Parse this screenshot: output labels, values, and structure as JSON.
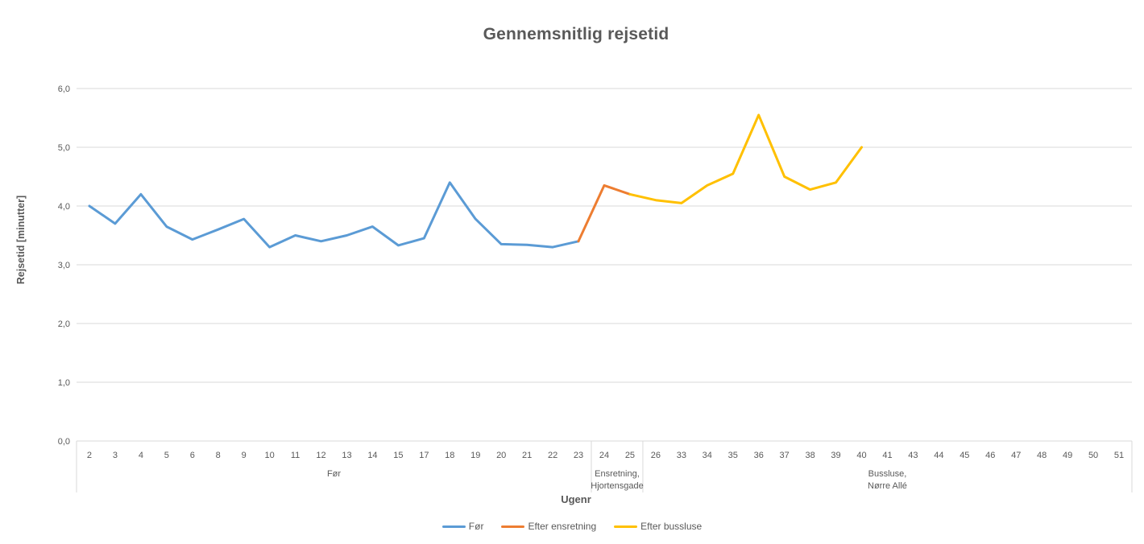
{
  "chart_data": {
    "type": "line",
    "title": "Gennemsnitlig rejsetid",
    "xlabel": "Ugenr",
    "ylabel": "Rejsetid [minutter]",
    "ylim": [
      0,
      6
    ],
    "grid": true,
    "legend_position": "bottom",
    "colors": {
      "axis_text": "#595959",
      "gridline": "#D9D9D9",
      "title_text": "#595959"
    },
    "yticks": [
      {
        "value": 0,
        "label": "0,0"
      },
      {
        "value": 1,
        "label": "1,0"
      },
      {
        "value": 2,
        "label": "2,0"
      },
      {
        "value": 3,
        "label": "3,0"
      },
      {
        "value": 4,
        "label": "4,0"
      },
      {
        "value": 5,
        "label": "5,0"
      },
      {
        "value": 6,
        "label": "6,0"
      }
    ],
    "categories": [
      "2",
      "3",
      "4",
      "5",
      "6",
      "8",
      "9",
      "10",
      "11",
      "12",
      "13",
      "14",
      "15",
      "17",
      "18",
      "19",
      "20",
      "21",
      "22",
      "23",
      "24",
      "25",
      "26",
      "33",
      "34",
      "35",
      "36",
      "37",
      "38",
      "39",
      "40",
      "41",
      "43",
      "44",
      "45",
      "46",
      "47",
      "48",
      "49",
      "50",
      "51"
    ],
    "groups": [
      {
        "label_lines": [
          "Før"
        ],
        "start": 0,
        "end": 19
      },
      {
        "label_lines": [
          "Ensretning,",
          "Hjortensgade"
        ],
        "start": 20,
        "end": 21
      },
      {
        "label_lines": [
          "Bussluse,",
          "Nørre Allé"
        ],
        "start": 22,
        "end": 40
      }
    ],
    "series": [
      {
        "name": "Før",
        "color": "#5B9BD5",
        "values": [
          4.0,
          3.7,
          4.2,
          3.65,
          3.43,
          3.6,
          3.78,
          3.3,
          3.5,
          3.4,
          3.5,
          3.65,
          3.33,
          3.45,
          4.4,
          3.78,
          3.35,
          3.34,
          3.3,
          3.4,
          null,
          null,
          null,
          null,
          null,
          null,
          null,
          null,
          null,
          null,
          null,
          null,
          null,
          null,
          null,
          null,
          null,
          null,
          null,
          null,
          null
        ]
      },
      {
        "name": "Efter ensretning",
        "color": "#ED7D31",
        "values": [
          null,
          null,
          null,
          null,
          null,
          null,
          null,
          null,
          null,
          null,
          null,
          null,
          null,
          null,
          null,
          null,
          null,
          null,
          null,
          3.4,
          4.35,
          4.2,
          null,
          null,
          null,
          null,
          null,
          null,
          null,
          null,
          null,
          null,
          null,
          null,
          null,
          null,
          null,
          null,
          null,
          null,
          null
        ]
      },
      {
        "name": "Efter bussluse",
        "color": "#FFC000",
        "values": [
          null,
          null,
          null,
          null,
          null,
          null,
          null,
          null,
          null,
          null,
          null,
          null,
          null,
          null,
          null,
          null,
          null,
          null,
          null,
          null,
          null,
          4.2,
          4.1,
          4.05,
          4.35,
          4.55,
          5.55,
          4.5,
          4.28,
          4.4,
          5.0,
          null,
          null,
          null,
          null,
          null,
          null,
          null,
          null,
          null,
          null
        ]
      }
    ],
    "legend": [
      "Før",
      "Efter ensretning",
      "Efter bussluse"
    ]
  }
}
